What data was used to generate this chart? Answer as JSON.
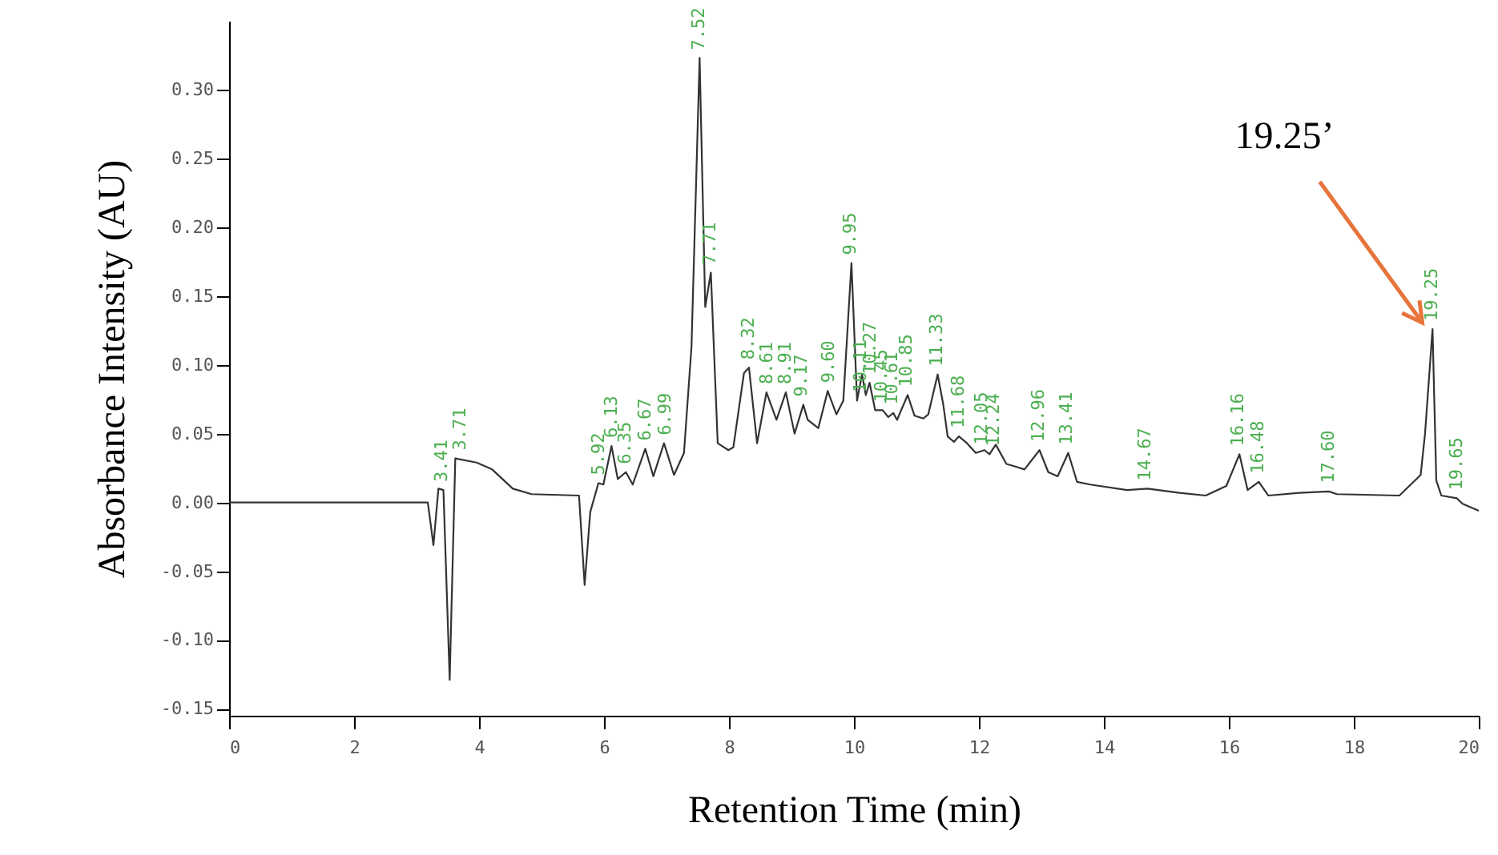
{
  "chart_data": {
    "type": "line",
    "xlabel": "Retention Time (min)",
    "ylabel": "Absorbance Intensity (AU)",
    "xlim": [
      0,
      20
    ],
    "xticks": [
      0,
      2,
      4,
      6,
      8,
      10,
      12,
      14,
      16,
      18,
      20
    ],
    "ylim": [
      -0.155,
      0.35
    ],
    "yticks": [
      {
        "value": -0.15,
        "label": "-0.15"
      },
      {
        "value": -0.1,
        "label": "-0.10"
      },
      {
        "value": -0.05,
        "label": "-0.05"
      },
      {
        "value": 0,
        "label": "0.00"
      },
      {
        "value": 0.05,
        "label": "0.05"
      },
      {
        "value": 0.1,
        "label": "0.10"
      },
      {
        "value": 0.15,
        "label": "0.15"
      },
      {
        "value": 0.2,
        "label": "0.20"
      },
      {
        "value": 0.25,
        "label": "0.25"
      },
      {
        "value": 0.3,
        "label": "0.30"
      }
    ],
    "grid": false,
    "marker": "none",
    "line_style": "solid",
    "series": [
      {
        "color": "#333333",
        "x": [
          0,
          3.18,
          3.27,
          3.35,
          3.43,
          3.53,
          3.62,
          3.96,
          4.21,
          4.54,
          4.84,
          5.6,
          5.69,
          5.78,
          5.91,
          5.99,
          6.12,
          6.22,
          6.35,
          6.46,
          6.66,
          6.79,
          6.96,
          7.12,
          7.28,
          7.4,
          7.53,
          7.62,
          7.71,
          7.82,
          7.99,
          8.07,
          8.24,
          8.32,
          8.45,
          8.6,
          8.76,
          8.91,
          9.05,
          9.19,
          9.26,
          9.43,
          9.58,
          9.72,
          9.83,
          9.96,
          10.05,
          10.13,
          10.19,
          10.25,
          10.34,
          10.46,
          10.55,
          10.63,
          10.69,
          10.86,
          10.97,
          11.11,
          11.19,
          11.34,
          11.43,
          11.5,
          11.6,
          11.68,
          11.81,
          11.95,
          12.09,
          12.17,
          12.27,
          12.44,
          12.73,
          12.97,
          13.11,
          13.26,
          13.43,
          13.57,
          13.78,
          14.37,
          14.7,
          15.21,
          15.63,
          15.96,
          16.17,
          16.3,
          16.48,
          16.63,
          17.13,
          17.6,
          17.73,
          18.73,
          19.07,
          19.14,
          19.26,
          19.32,
          19.4,
          19.65,
          19.74,
          20
        ],
        "values": [
          0,
          0,
          -0.031,
          0.01,
          0.009,
          -0.129,
          0.032,
          0.029,
          0.024,
          0.01,
          0.006,
          0.005,
          -0.06,
          -0.007,
          0.014,
          0.013,
          0.041,
          0.017,
          0.022,
          0.013,
          0.039,
          0.019,
          0.043,
          0.02,
          0.036,
          0.113,
          0.323,
          0.142,
          0.167,
          0.043,
          0.038,
          0.04,
          0.094,
          0.098,
          0.043,
          0.08,
          0.06,
          0.08,
          0.05,
          0.071,
          0.06,
          0.054,
          0.081,
          0.064,
          0.074,
          0.174,
          0.074,
          0.093,
          0.078,
          0.087,
          0.067,
          0.067,
          0.062,
          0.065,
          0.06,
          0.078,
          0.063,
          0.061,
          0.064,
          0.093,
          0.071,
          0.048,
          0.044,
          0.048,
          0.043,
          0.036,
          0.038,
          0.035,
          0.042,
          0.028,
          0.024,
          0.038,
          0.022,
          0.019,
          0.036,
          0.015,
          0.013,
          0.009,
          0.01,
          0.007,
          0.005,
          0.012,
          0.035,
          0.009,
          0.015,
          0.005,
          0.007,
          0.008,
          0.006,
          0.005,
          0.02,
          0.05,
          0.126,
          0.016,
          0.005,
          0.003,
          -0.001,
          -0.006
        ]
      }
    ],
    "annotations": [
      {
        "text": "3.41",
        "x": 3.41,
        "y": 0.009
      },
      {
        "text": "3.71",
        "x": 3.71,
        "y": 0.032
      },
      {
        "text": "5.92",
        "x": 5.92,
        "y": 0.014
      },
      {
        "text": "6.13",
        "x": 6.13,
        "y": 0.041
      },
      {
        "text": "6.35",
        "x": 6.35,
        "y": 0.022
      },
      {
        "text": "6.67",
        "x": 6.67,
        "y": 0.039
      },
      {
        "text": "6.99",
        "x": 6.99,
        "y": 0.043
      },
      {
        "text": "7.52",
        "x": 7.52,
        "y": 0.323
      },
      {
        "text": "7.71",
        "x": 7.71,
        "y": 0.167
      },
      {
        "text": "8.32",
        "x": 8.32,
        "y": 0.098
      },
      {
        "text": "8.61",
        "x": 8.61,
        "y": 0.08
      },
      {
        "text": "8.91",
        "x": 8.91,
        "y": 0.08
      },
      {
        "text": "9.17",
        "x": 9.17,
        "y": 0.071
      },
      {
        "text": "9.60",
        "x": 9.6,
        "y": 0.081
      },
      {
        "text": "9.95",
        "x": 9.95,
        "y": 0.174
      },
      {
        "text": "10.11",
        "x": 10.11,
        "y": 0.074
      },
      {
        "text": "10.27",
        "x": 10.27,
        "y": 0.087
      },
      {
        "text": "10.45",
        "x": 10.45,
        "y": 0.067
      },
      {
        "text": "10.61",
        "x": 10.61,
        "y": 0.065
      },
      {
        "text": "10.85",
        "x": 10.85,
        "y": 0.078
      },
      {
        "text": "11.33",
        "x": 11.33,
        "y": 0.093
      },
      {
        "text": "11.68",
        "x": 11.68,
        "y": 0.048
      },
      {
        "text": "12.05",
        "x": 12.05,
        "y": 0.036
      },
      {
        "text": "12.24",
        "x": 12.24,
        "y": 0.035
      },
      {
        "text": "12.96",
        "x": 12.96,
        "y": 0.038
      },
      {
        "text": "13.41",
        "x": 13.41,
        "y": 0.036
      },
      {
        "text": "14.67",
        "x": 14.67,
        "y": 0.01
      },
      {
        "text": "16.16",
        "x": 16.16,
        "y": 0.035
      },
      {
        "text": "16.48",
        "x": 16.48,
        "y": 0.015
      },
      {
        "text": "17.60",
        "x": 17.6,
        "y": 0.008
      },
      {
        "text": "19.25",
        "x": 19.25,
        "y": 0.126
      },
      {
        "text": "19.65",
        "x": 19.65,
        "y": 0.003
      },
      {
        "text": "19.25’",
        "x": 19.25,
        "y": 0.126
      }
    ]
  }
}
